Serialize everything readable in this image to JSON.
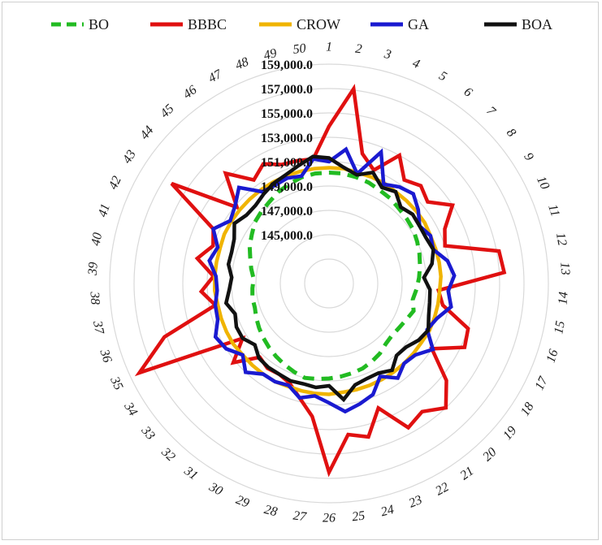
{
  "chart_data": {
    "type": "radar",
    "categories": [
      "1",
      "2",
      "3",
      "4",
      "5",
      "6",
      "7",
      "8",
      "9",
      "10",
      "11",
      "12",
      "13",
      "14",
      "15",
      "16",
      "17",
      "18",
      "19",
      "20",
      "21",
      "22",
      "23",
      "24",
      "25",
      "26",
      "27",
      "28",
      "29",
      "30",
      "31",
      "32",
      "33",
      "34",
      "35",
      "36",
      "37",
      "38",
      "39",
      "40",
      "41",
      "42",
      "43",
      "44",
      "45",
      "46",
      "47",
      "48",
      "49",
      "50"
    ],
    "radial_ticks": [
      "145,000.0",
      "147,000.0",
      "149,000.0",
      "151,000.0",
      "153,000.0",
      "155,000.0",
      "157,000.0",
      "159,000.0"
    ],
    "rmin": 141000,
    "rmax": 159000,
    "tick_values": [
      145000,
      147000,
      149000,
      151000,
      153000,
      155000,
      157000,
      159000
    ],
    "grid_values": [
      143000,
      145000,
      147000,
      149000,
      151000,
      153000,
      155000,
      157000,
      159000
    ],
    "legend_position": "top",
    "series": [
      {
        "name": "BO",
        "color": "#22bb22",
        "dashed": true,
        "values": [
          150100,
          150100,
          150000,
          149900,
          149700,
          149600,
          149400,
          149300,
          149200,
          149000,
          148800,
          148600,
          148400,
          148200,
          148000,
          148300,
          148000,
          147800,
          147700,
          147800,
          148100,
          148300,
          148500,
          148600,
          148700,
          148800,
          148900,
          149000,
          148800,
          148600,
          148400,
          148200,
          148000,
          147800,
          147600,
          147400,
          147400,
          147300,
          147200,
          147500,
          147800,
          148200,
          148500,
          148900,
          149100,
          149300,
          149600,
          149800,
          150000,
          150100
        ]
      },
      {
        "name": "BBBC",
        "color": "#e01010",
        "dashed": false,
        "values": [
          153900,
          157100,
          152000,
          151000,
          153000,
          151500,
          152000,
          151500,
          153000,
          151500,
          151000,
          155200,
          155400,
          150000,
          150500,
          153000,
          153300,
          151000,
          153500,
          155000,
          154000,
          154500,
          152000,
          154000,
          153500,
          156500,
          152000,
          150700,
          149800,
          149500,
          149600,
          149300,
          151200,
          149400,
          158200,
          155200,
          150500,
          151500,
          150500,
          152000,
          151000,
          151500,
          156300,
          150800,
          153400,
          151500,
          152200,
          151500,
          151400,
          151300
        ]
      },
      {
        "name": "CROW",
        "color": "#f0b400",
        "dashed": false,
        "values": [
          150500,
          150500,
          150400,
          150400,
          150400,
          150300,
          150300,
          150300,
          150300,
          150200,
          150200,
          150200,
          150200,
          150100,
          150100,
          150100,
          150100,
          150000,
          150000,
          150000,
          150000,
          150000,
          150000,
          150000,
          150000,
          150100,
          150100,
          150100,
          150100,
          150200,
          150200,
          150200,
          150200,
          150300,
          150300,
          150300,
          150300,
          150400,
          150400,
          150400,
          150400,
          150500,
          150500,
          150500,
          150500,
          150500,
          150500,
          150500,
          150500,
          150500
        ]
      },
      {
        "name": "GA",
        "color": "#1a1ad0",
        "dashed": false,
        "values": [
          151000,
          152100,
          150300,
          152600,
          150300,
          150800,
          151100,
          150500,
          149800,
          150200,
          150000,
          150900,
          151300,
          150800,
          151200,
          150300,
          149900,
          151100,
          150200,
          150000,
          150600,
          149700,
          150800,
          151200,
          151600,
          150800,
          150300,
          150700,
          150000,
          150200,
          150200,
          151000,
          150200,
          151000,
          151300,
          150600,
          150500,
          150200,
          150300,
          151000,
          150600,
          151500,
          150600,
          151000,
          151800,
          150300,
          150200,
          150300,
          150100,
          151300
        ]
      },
      {
        "name": "BOA",
        "color": "#111111",
        "dashed": false,
        "values": [
          151300,
          150600,
          150200,
          150800,
          150000,
          150300,
          149600,
          149900,
          149800,
          149800,
          150000,
          149600,
          148800,
          149300,
          149400,
          149600,
          150000,
          149700,
          149200,
          149100,
          149800,
          149400,
          149400,
          149600,
          150600,
          149400,
          149600,
          149500,
          149600,
          149500,
          149500,
          149400,
          148900,
          149400,
          149400,
          149100,
          149600,
          149200,
          149000,
          149400,
          149400,
          149600,
          150200,
          149800,
          149800,
          150100,
          150400,
          150600,
          151000,
          151500
        ]
      }
    ]
  }
}
